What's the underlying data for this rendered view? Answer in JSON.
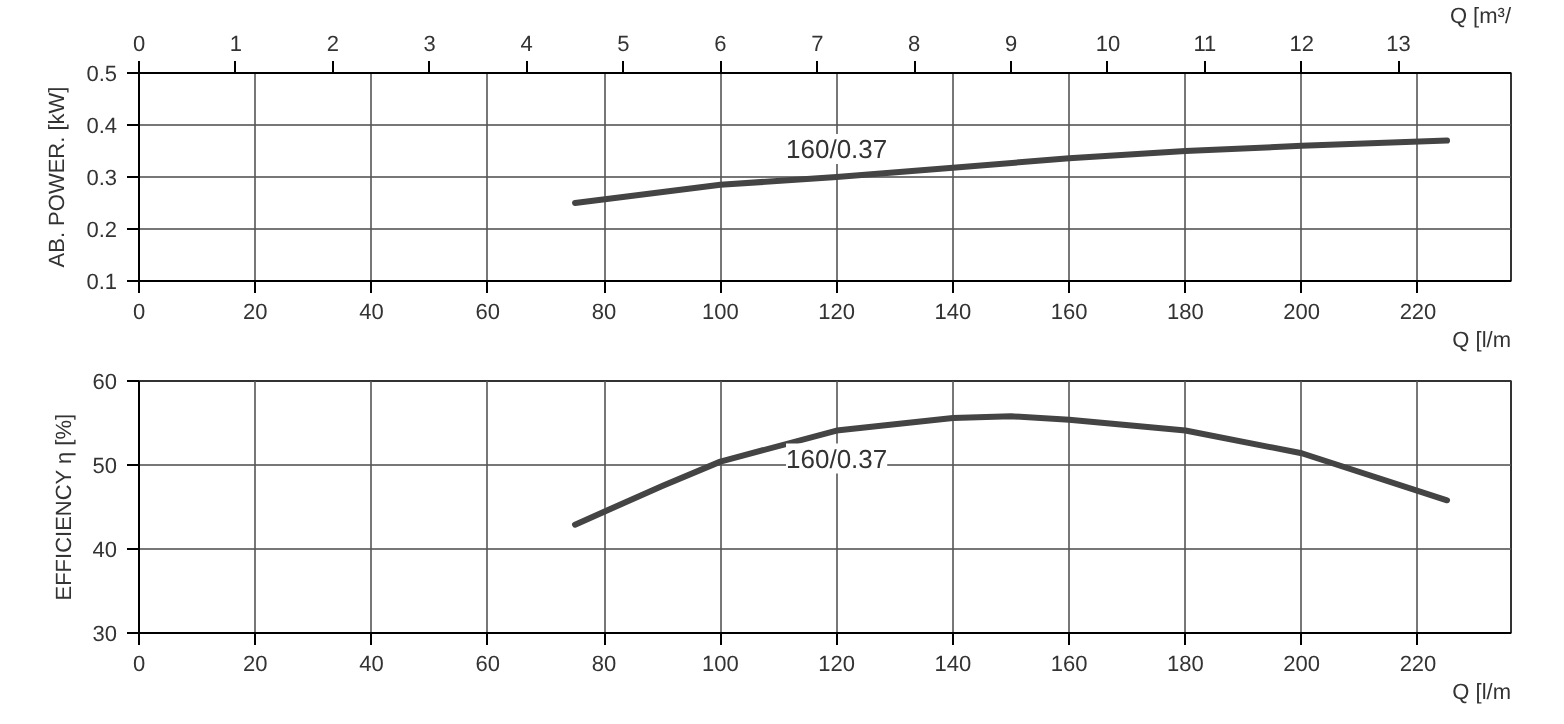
{
  "chart_data": [
    {
      "type": "line",
      "x2label": "Q [m³/",
      "x2lim": [
        0,
        14.16
      ],
      "x2ticks": [
        0,
        1,
        2,
        3,
        4,
        5,
        6,
        7,
        8,
        9,
        10,
        11,
        12,
        13
      ],
      "xlabel": "Q [l/m",
      "xlim": [
        0,
        236
      ],
      "xticks": [
        0,
        20,
        40,
        60,
        80,
        100,
        120,
        140,
        160,
        180,
        200,
        220
      ],
      "ylabel": "AB. POWER. [kW]",
      "ylim": [
        0.1,
        0.5
      ],
      "yticks": [
        0.1,
        0.2,
        0.3,
        0.4,
        0.5
      ],
      "grid": true,
      "series": [
        {
          "name": "160/0.37",
          "color": "#444444",
          "x": [
            75,
            100,
            120,
            140,
            160,
            180,
            200,
            225
          ],
          "values": [
            0.25,
            0.285,
            0.3,
            0.318,
            0.336,
            0.35,
            0.36,
            0.37
          ]
        }
      ]
    },
    {
      "type": "line",
      "xlabel": "Q [l/m",
      "xlim": [
        0,
        236
      ],
      "xticks": [
        0,
        20,
        40,
        60,
        80,
        100,
        120,
        140,
        160,
        180,
        200,
        220
      ],
      "ylabel": "EFFICIENCY η [%]",
      "ylim": [
        30,
        60
      ],
      "yticks": [
        30,
        40,
        50,
        60
      ],
      "grid": true,
      "series": [
        {
          "name": "160/0.37",
          "color": "#444444",
          "x": [
            75,
            90,
            100,
            120,
            140,
            150,
            160,
            180,
            200,
            225
          ],
          "values": [
            42.9,
            47.5,
            50.4,
            54.1,
            55.6,
            55.8,
            55.4,
            54.1,
            51.4,
            45.8
          ]
        }
      ]
    }
  ]
}
